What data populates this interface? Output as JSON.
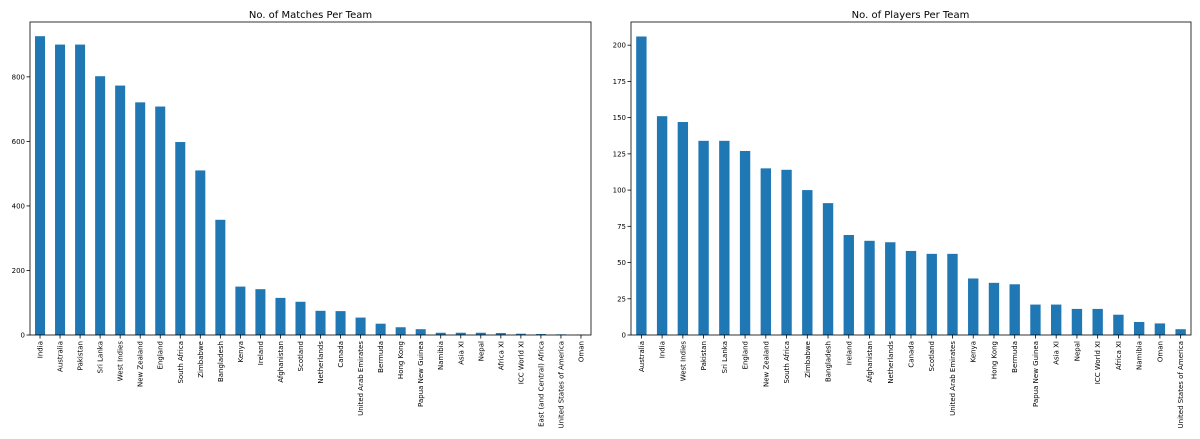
{
  "colors": {
    "bar": "#1f77b4"
  },
  "chart_data": [
    {
      "type": "bar",
      "title": "No. of Matches Per Team",
      "xlabel": "",
      "ylabel": "",
      "ylim": [
        0,
        970
      ],
      "yticks": [
        0,
        200,
        400,
        600,
        800
      ],
      "grid": false,
      "categories": [
        "India",
        "Australia",
        "Pakistan",
        "Sri Lanka",
        "West Indies",
        "New Zealand",
        "England",
        "South Africa",
        "Zimbabwe",
        "Bangladesh",
        "Kenya",
        "Ireland",
        "Afghanistan",
        "Scotland",
        "Netherlands",
        "Canada",
        "United Arab Emirates",
        "Bermuda",
        "Hong Kong",
        "Papua New Guinea",
        "Namibia",
        "Asia XI",
        "Nepal",
        "Africa XI",
        "ICC World XI",
        "East (and Central) Africa",
        "United States of America",
        "Oman"
      ],
      "values": [
        926,
        900,
        900,
        802,
        773,
        721,
        708,
        598,
        510,
        357,
        150,
        142,
        115,
        103,
        75,
        74,
        54,
        35,
        24,
        18,
        7,
        7,
        7,
        6,
        4,
        3,
        2,
        1
      ]
    },
    {
      "type": "bar",
      "title": "No. of Players Per Team",
      "xlabel": "",
      "ylabel": "",
      "ylim": [
        0,
        216
      ],
      "yticks": [
        0,
        25,
        50,
        75,
        100,
        125,
        150,
        175,
        200
      ],
      "grid": false,
      "categories": [
        "Australia",
        "India",
        "West Indies",
        "Pakistan",
        "Sri Lanka",
        "England",
        "New Zealand",
        "South Africa",
        "Zimbabwe",
        "Bangladesh",
        "Ireland",
        "Afghanistan",
        "Netherlands",
        "Canada",
        "Scotland",
        "United Arab Emirates",
        "Kenya",
        "Hong Kong",
        "Bermuda",
        "Papua New Guinea",
        "Asia XI",
        "Nepal",
        "ICC World XI",
        "Africa XI",
        "Namibia",
        "Oman",
        "United States of America"
      ],
      "values": [
        206,
        151,
        147,
        134,
        134,
        127,
        115,
        114,
        100,
        91,
        69,
        65,
        64,
        58,
        56,
        56,
        39,
        36,
        35,
        21,
        21,
        18,
        18,
        14,
        9,
        8,
        4
      ]
    }
  ]
}
